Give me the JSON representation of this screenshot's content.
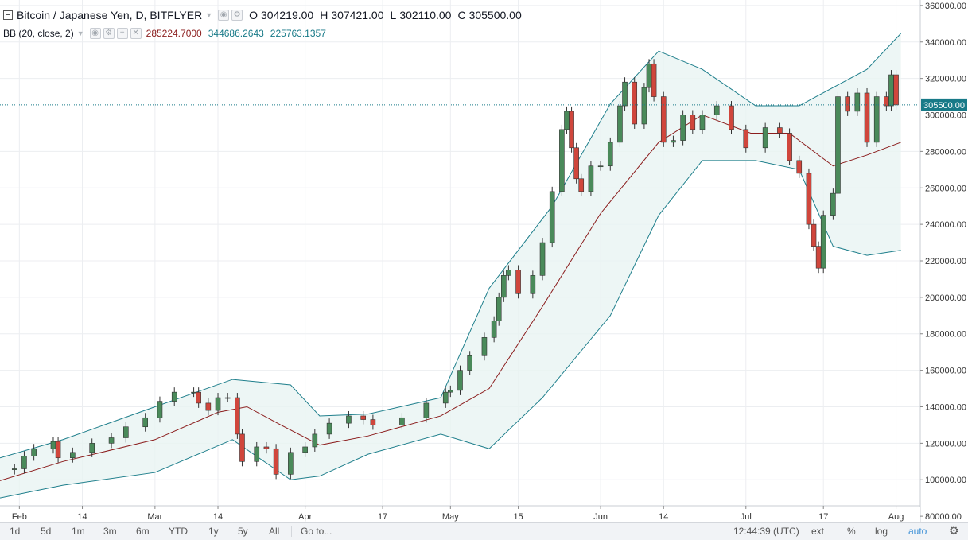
{
  "legend": {
    "symbol": "Bitcoin / Japanese Yen, D, BITFLYER",
    "ohlc": [
      {
        "key": "O",
        "value": "304219.00"
      },
      {
        "key": "H",
        "value": "307421.00"
      },
      {
        "key": "L",
        "value": "302110.00"
      },
      {
        "key": "C",
        "value": "305500.00"
      }
    ],
    "indicator": "BB (20, close, 2)",
    "bb_values": {
      "basis": "285224.7000",
      "upper": "344686.2643",
      "lower": "225763.1357"
    }
  },
  "toolbar": {
    "ranges": [
      "1d",
      "5d",
      "1m",
      "3m",
      "6m",
      "YTD",
      "1y",
      "5y",
      "All"
    ],
    "goto": "Go to...",
    "time": "12:44:39 (UTC)",
    "ext": "ext",
    "percent": "%",
    "log": "log",
    "auto": "auto"
  },
  "colors": {
    "up": "#4a8a5a",
    "down": "#d0463c",
    "band": "#1f7f8c",
    "basis": "#8b1d1d",
    "fill": "#e8f4f3",
    "price_label_bg": "#187a88"
  },
  "chart_data": {
    "type": "candlestick",
    "title": "Bitcoin / Japanese Yen, D, BITFLYER",
    "last_price": 305500,
    "last_price_label": "305500.00",
    "ylim": [
      77000,
      363000
    ],
    "y_ticks": [
      80000,
      100000,
      120000,
      140000,
      160000,
      180000,
      200000,
      220000,
      240000,
      260000,
      280000,
      300000,
      320000,
      340000,
      360000
    ],
    "y_tick_labels": [
      "80000.00",
      "100000.00",
      "120000.00",
      "140000.00",
      "160000.00",
      "180000.00",
      "200000.00",
      "220000.00",
      "240000.00",
      "260000.00",
      "280000.00",
      "300000.00",
      "320000.00",
      "340000.00",
      "360000.00"
    ],
    "x_range": [
      "2017-01-28",
      "2017-08-06"
    ],
    "x_ticks": [
      {
        "date": "2017-02-01",
        "label": "Feb"
      },
      {
        "date": "2017-02-14",
        "label": "14"
      },
      {
        "date": "2017-03-01",
        "label": "Mar"
      },
      {
        "date": "2017-03-14",
        "label": "14"
      },
      {
        "date": "2017-04-01",
        "label": "Apr"
      },
      {
        "date": "2017-04-17",
        "label": "17"
      },
      {
        "date": "2017-05-01",
        "label": "May"
      },
      {
        "date": "2017-05-15",
        "label": "15"
      },
      {
        "date": "2017-06-01",
        "label": "Jun"
      },
      {
        "date": "2017-06-14",
        "label": "14"
      },
      {
        "date": "2017-07-01",
        "label": "Jul"
      },
      {
        "date": "2017-07-17",
        "label": "17"
      },
      {
        "date": "2017-08-01",
        "label": "Aug"
      }
    ],
    "grid": true,
    "close_series": [
      {
        "date": "2017-01-28",
        "close": 105500
      },
      {
        "date": "2017-01-31",
        "close": 106000
      },
      {
        "date": "2017-02-02",
        "close": 113000
      },
      {
        "date": "2017-02-04",
        "close": 117000
      },
      {
        "date": "2017-02-08",
        "close": 121000
      },
      {
        "date": "2017-02-09",
        "close": 112000
      },
      {
        "date": "2017-02-12",
        "close": 115000
      },
      {
        "date": "2017-02-16",
        "close": 120000
      },
      {
        "date": "2017-02-20",
        "close": 123000
      },
      {
        "date": "2017-02-23",
        "close": 129000
      },
      {
        "date": "2017-02-27",
        "close": 134000
      },
      {
        "date": "2017-03-02",
        "close": 143000
      },
      {
        "date": "2017-03-05",
        "close": 148000
      },
      {
        "date": "2017-03-09",
        "close": 148000
      },
      {
        "date": "2017-03-10",
        "close": 142000
      },
      {
        "date": "2017-03-12",
        "close": 138000
      },
      {
        "date": "2017-03-14",
        "close": 145000
      },
      {
        "date": "2017-03-16",
        "close": 145000
      },
      {
        "date": "2017-03-18",
        "close": 125000
      },
      {
        "date": "2017-03-19",
        "close": 110000
      },
      {
        "date": "2017-03-22",
        "close": 118000
      },
      {
        "date": "2017-03-24",
        "close": 117000
      },
      {
        "date": "2017-03-26",
        "close": 103000
      },
      {
        "date": "2017-03-29",
        "close": 115000
      },
      {
        "date": "2017-04-01",
        "close": 118000
      },
      {
        "date": "2017-04-03",
        "close": 125000
      },
      {
        "date": "2017-04-06",
        "close": 131000
      },
      {
        "date": "2017-04-10",
        "close": 135000
      },
      {
        "date": "2017-04-13",
        "close": 133000
      },
      {
        "date": "2017-04-15",
        "close": 130000
      },
      {
        "date": "2017-04-21",
        "close": 134000
      },
      {
        "date": "2017-04-26",
        "close": 142000
      },
      {
        "date": "2017-04-30",
        "close": 148000
      },
      {
        "date": "2017-05-01",
        "close": 149000
      },
      {
        "date": "2017-05-03",
        "close": 160000
      },
      {
        "date": "2017-05-05",
        "close": 168000
      },
      {
        "date": "2017-05-08",
        "close": 178000
      },
      {
        "date": "2017-05-10",
        "close": 187000
      },
      {
        "date": "2017-05-11",
        "close": 200000
      },
      {
        "date": "2017-05-12",
        "close": 212000
      },
      {
        "date": "2017-05-13",
        "close": 215000
      },
      {
        "date": "2017-05-15",
        "close": 202000
      },
      {
        "date": "2017-05-18",
        "close": 212000
      },
      {
        "date": "2017-05-20",
        "close": 230000
      },
      {
        "date": "2017-05-22",
        "close": 258000
      },
      {
        "date": "2017-05-24",
        "close": 292000
      },
      {
        "date": "2017-05-25",
        "close": 302000
      },
      {
        "date": "2017-05-26",
        "close": 282000
      },
      {
        "date": "2017-05-27",
        "close": 265000
      },
      {
        "date": "2017-05-28",
        "close": 258000
      },
      {
        "date": "2017-05-30",
        "close": 272000
      },
      {
        "date": "2017-06-01",
        "close": 272000
      },
      {
        "date": "2017-06-03",
        "close": 285000
      },
      {
        "date": "2017-06-05",
        "close": 305000
      },
      {
        "date": "2017-06-06",
        "close": 318000
      },
      {
        "date": "2017-06-08",
        "close": 295000
      },
      {
        "date": "2017-06-10",
        "close": 315000
      },
      {
        "date": "2017-06-11",
        "close": 328000
      },
      {
        "date": "2017-06-12",
        "close": 310000
      },
      {
        "date": "2017-06-14",
        "close": 285000
      },
      {
        "date": "2017-06-16",
        "close": 286000
      },
      {
        "date": "2017-06-18",
        "close": 300000
      },
      {
        "date": "2017-06-20",
        "close": 292000
      },
      {
        "date": "2017-06-22",
        "close": 300000
      },
      {
        "date": "2017-06-25",
        "close": 305000
      },
      {
        "date": "2017-06-28",
        "close": 292000
      },
      {
        "date": "2017-07-01",
        "close": 282000
      },
      {
        "date": "2017-07-05",
        "close": 293000
      },
      {
        "date": "2017-07-08",
        "close": 290000
      },
      {
        "date": "2017-07-10",
        "close": 275000
      },
      {
        "date": "2017-07-12",
        "close": 268000
      },
      {
        "date": "2017-07-14",
        "close": 240000
      },
      {
        "date": "2017-07-15",
        "close": 228000
      },
      {
        "date": "2017-07-16",
        "close": 216000
      },
      {
        "date": "2017-07-17",
        "close": 245000
      },
      {
        "date": "2017-07-19",
        "close": 257000
      },
      {
        "date": "2017-07-20",
        "close": 310000
      },
      {
        "date": "2017-07-22",
        "close": 302000
      },
      {
        "date": "2017-07-24",
        "close": 312000
      },
      {
        "date": "2017-07-26",
        "close": 285000
      },
      {
        "date": "2017-07-28",
        "close": 310000
      },
      {
        "date": "2017-07-30",
        "close": 305000
      },
      {
        "date": "2017-07-31",
        "close": 322000
      },
      {
        "date": "2017-08-01",
        "close": 305500
      }
    ],
    "bollinger": {
      "basis": [
        {
          "date": "2017-01-28",
          "value": 99500
        },
        {
          "date": "2017-02-10",
          "value": 110000
        },
        {
          "date": "2017-03-01",
          "value": 122000
        },
        {
          "date": "2017-03-14",
          "value": 137000
        },
        {
          "date": "2017-03-20",
          "value": 140000
        },
        {
          "date": "2017-03-27",
          "value": 130000
        },
        {
          "date": "2017-04-04",
          "value": 119000
        },
        {
          "date": "2017-04-14",
          "value": 124000
        },
        {
          "date": "2017-04-29",
          "value": 135000
        },
        {
          "date": "2017-05-09",
          "value": 150000
        },
        {
          "date": "2017-05-20",
          "value": 195000
        },
        {
          "date": "2017-06-01",
          "value": 246000
        },
        {
          "date": "2017-06-13",
          "value": 285000
        },
        {
          "date": "2017-06-22",
          "value": 300000
        },
        {
          "date": "2017-07-02",
          "value": 290000
        },
        {
          "date": "2017-07-10",
          "value": 290000
        },
        {
          "date": "2017-07-19",
          "value": 272000
        },
        {
          "date": "2017-07-26",
          "value": 278000
        },
        {
          "date": "2017-08-02",
          "value": 285000
        }
      ],
      "upper": [
        {
          "date": "2017-01-28",
          "value": 112000
        },
        {
          "date": "2017-02-10",
          "value": 122000
        },
        {
          "date": "2017-03-01",
          "value": 140000
        },
        {
          "date": "2017-03-17",
          "value": 155000
        },
        {
          "date": "2017-03-29",
          "value": 152000
        },
        {
          "date": "2017-04-04",
          "value": 135000
        },
        {
          "date": "2017-04-14",
          "value": 136000
        },
        {
          "date": "2017-04-29",
          "value": 145000
        },
        {
          "date": "2017-05-09",
          "value": 205000
        },
        {
          "date": "2017-05-22",
          "value": 250000
        },
        {
          "date": "2017-06-03",
          "value": 306000
        },
        {
          "date": "2017-06-13",
          "value": 335000
        },
        {
          "date": "2017-06-22",
          "value": 325000
        },
        {
          "date": "2017-07-03",
          "value": 305000
        },
        {
          "date": "2017-07-12",
          "value": 305000
        },
        {
          "date": "2017-07-19",
          "value": 315000
        },
        {
          "date": "2017-07-26",
          "value": 325000
        },
        {
          "date": "2017-08-02",
          "value": 344686
        }
      ],
      "lower": [
        {
          "date": "2017-01-28",
          "value": 90000
        },
        {
          "date": "2017-02-10",
          "value": 97000
        },
        {
          "date": "2017-03-01",
          "value": 104000
        },
        {
          "date": "2017-03-17",
          "value": 122000
        },
        {
          "date": "2017-03-29",
          "value": 100000
        },
        {
          "date": "2017-04-04",
          "value": 102000
        },
        {
          "date": "2017-04-14",
          "value": 114000
        },
        {
          "date": "2017-04-29",
          "value": 125000
        },
        {
          "date": "2017-05-09",
          "value": 117000
        },
        {
          "date": "2017-05-20",
          "value": 145000
        },
        {
          "date": "2017-06-03",
          "value": 190000
        },
        {
          "date": "2017-06-13",
          "value": 245000
        },
        {
          "date": "2017-06-22",
          "value": 275000
        },
        {
          "date": "2017-07-03",
          "value": 275000
        },
        {
          "date": "2017-07-12",
          "value": 270000
        },
        {
          "date": "2017-07-19",
          "value": 228000
        },
        {
          "date": "2017-07-26",
          "value": 223000
        },
        {
          "date": "2017-08-02",
          "value": 225763
        }
      ]
    }
  }
}
